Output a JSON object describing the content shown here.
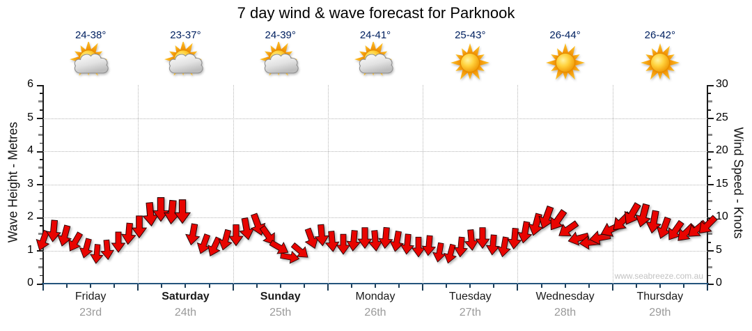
{
  "header": {
    "title": "7 day wind & wave forecast for Parknook"
  },
  "watermark": "www.seabreeze.com.au",
  "axes": {
    "left": {
      "title": "Wave Height - Metres",
      "range": [
        0,
        6
      ],
      "tick_labels": [
        0,
        1,
        2,
        3,
        4,
        5,
        6
      ]
    },
    "right": {
      "title": "Wind Speed - Knots",
      "range": [
        0,
        30
      ],
      "tick_labels": [
        0,
        5,
        10,
        15,
        20,
        25,
        30
      ]
    }
  },
  "forecast": {
    "days": [
      {
        "name": "Friday",
        "date": "23rd",
        "temp": "24-38°",
        "icon": "partly-cloudy-icon",
        "weekend": false
      },
      {
        "name": "Saturday",
        "date": "24th",
        "temp": "23-37°",
        "icon": "partly-cloudy-icon",
        "weekend": true
      },
      {
        "name": "Sunday",
        "date": "25th",
        "temp": "24-39°",
        "icon": "partly-cloudy-icon",
        "weekend": true
      },
      {
        "name": "Monday",
        "date": "26th",
        "temp": "24-41°",
        "icon": "partly-cloudy-icon",
        "weekend": false
      },
      {
        "name": "Tuesday",
        "date": "27th",
        "temp": "25-43°",
        "icon": "sunny-icon",
        "weekend": false
      },
      {
        "name": "Wednesday",
        "date": "28th",
        "temp": "26-44°",
        "icon": "sunny-icon",
        "weekend": false
      },
      {
        "name": "Thursday",
        "date": "29th",
        "temp": "26-42°",
        "icon": "sunny-icon",
        "weekend": false
      }
    ]
  },
  "colors": {
    "arrow_fill": "#e80400",
    "arrow_stroke": "#250000",
    "temp_text": "#002060",
    "date_text": "#9a9a9a",
    "bottom_axis": "#24547c",
    "grid": "#b5b5b5"
  },
  "chart_data": {
    "type": "scatter",
    "subtype": "wind-arrow-series",
    "title": "7 day wind & wave forecast for Parknook",
    "x": {
      "unit": "hours",
      "range": [
        0,
        168
      ],
      "days": [
        "Friday 23rd",
        "Saturday 24th",
        "Sunday 25th",
        "Monday 26th",
        "Tuesday 27th",
        "Wednesday 28th",
        "Thursday 29th"
      ]
    },
    "ylabel_left": "Wave Height - Metres",
    "ylim_left": [
      0,
      6
    ],
    "ylabel_right": "Wind Speed - Knots",
    "ylim_right": [
      0,
      30
    ],
    "grid": true,
    "series": [
      {
        "name": "Wind Speed - Knots",
        "marker": "arrow",
        "color": "#e80400",
        "hours_step": 2.7097,
        "knots": [
          6.5,
          8.0,
          7.3,
          6.3,
          5.4,
          4.5,
          5.2,
          6.3,
          7.6,
          8.6,
          10.5,
          11.3,
          10.8,
          11.0,
          7.5,
          6.0,
          5.6,
          6.6,
          7.4,
          8.3,
          9.0,
          7.3,
          5.5,
          4.0,
          4.9,
          6.8,
          7.4,
          6.4,
          6.0,
          6.5,
          7.0,
          6.5,
          7.0,
          6.4,
          6.0,
          5.6,
          5.8,
          4.7,
          4.5,
          5.6,
          6.6,
          7.0,
          5.9,
          5.6,
          6.8,
          7.8,
          9.0,
          10.0,
          9.6,
          8.2,
          6.8,
          6.2,
          7.0,
          8.2,
          9.4,
          10.5,
          10.3,
          9.4,
          8.4,
          8.0,
          7.7,
          8.2,
          8.8
        ],
        "direction_deg": [
          200,
          185,
          195,
          210,
          195,
          185,
          175,
          180,
          185,
          180,
          175,
          180,
          185,
          180,
          190,
          200,
          205,
          195,
          180,
          170,
          160,
          145,
          120,
          100,
          130,
          160,
          175,
          175,
          180,
          185,
          180,
          175,
          185,
          190,
          185,
          180,
          185,
          190,
          195,
          185,
          175,
          180,
          185,
          190,
          185,
          190,
          195,
          200,
          215,
          235,
          255,
          265,
          260,
          245,
          225,
          210,
          195,
          190,
          200,
          215,
          225,
          230,
          225
        ]
      }
    ]
  }
}
